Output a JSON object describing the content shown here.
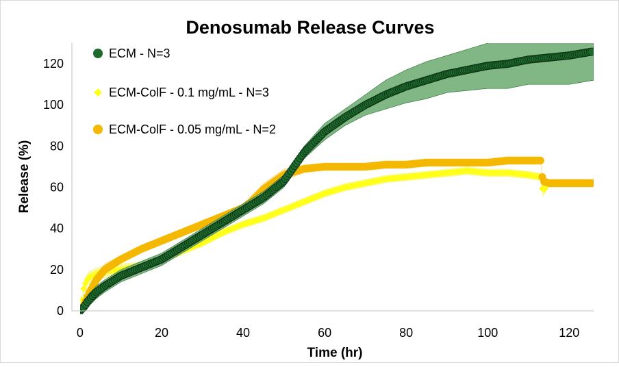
{
  "chart_data": {
    "type": "scatter",
    "title": "Denosumab Release Curves",
    "xlabel": "Time (hr)",
    "ylabel": "Release (%)",
    "xlim": [
      -2,
      126
    ],
    "ylim": [
      0,
      130
    ],
    "x_ticks": [
      0,
      20,
      40,
      60,
      80,
      100,
      120
    ],
    "y_ticks": [
      0,
      20,
      40,
      60,
      80,
      100,
      120
    ],
    "grid": false,
    "legend_position": "top-left",
    "series": [
      {
        "name": "ECM - N=3",
        "marker": "circle",
        "color": "#1e6b2e",
        "band_color": "#6aaa6f",
        "x": [
          0,
          1,
          2,
          4,
          6,
          10,
          15,
          20,
          25,
          30,
          35,
          40,
          45,
          50,
          55,
          60,
          65,
          70,
          75,
          80,
          85,
          90,
          95,
          100,
          105,
          110,
          115,
          120,
          126
        ],
        "y": [
          0,
          2,
          5,
          9,
          12,
          17,
          21,
          25,
          31,
          37,
          43,
          49,
          55,
          63,
          77,
          87,
          94,
          100,
          105,
          109,
          112,
          115,
          117,
          119,
          120,
          122,
          123,
          124,
          126
        ],
        "err": [
          0,
          2,
          3,
          3,
          3,
          3,
          3,
          3,
          3,
          3,
          3,
          3,
          3,
          3,
          3,
          4,
          4,
          5,
          7,
          8,
          9,
          9,
          10,
          11,
          12,
          12,
          13,
          14,
          14
        ]
      },
      {
        "name": "ECM-ColF - 0.1 mg/mL - N=3",
        "marker": "diamond",
        "color": "#ffff1a",
        "band_color": "#f5f58a",
        "x": [
          0,
          1,
          2,
          4,
          6,
          10,
          15,
          20,
          25,
          30,
          35,
          40,
          45,
          50,
          55,
          60,
          65,
          70,
          75,
          80,
          85,
          90,
          95,
          100,
          105,
          110,
          113,
          113.5,
          115,
          120,
          126
        ],
        "y": [
          0,
          12,
          16,
          18,
          19,
          20,
          22,
          25,
          29,
          33,
          38,
          42,
          45,
          49,
          53,
          57,
          60,
          62,
          64,
          65,
          66,
          67,
          68,
          67,
          67,
          66,
          65,
          58,
          62,
          62,
          62
        ],
        "err": [
          0,
          3,
          3,
          3,
          3,
          3,
          2,
          2,
          2,
          2,
          2,
          2,
          2,
          2,
          2,
          2,
          2,
          2,
          2,
          2,
          2,
          2,
          2,
          2,
          2,
          2,
          2,
          3,
          2,
          2,
          2
        ]
      },
      {
        "name": "ECM-ColF - 0.05 mg/mL - N=2",
        "marker": "circle",
        "color": "#f5b800",
        "band_color": "#f7d77a",
        "x": [
          0,
          1,
          2,
          4,
          6,
          10,
          15,
          20,
          25,
          30,
          35,
          40,
          42,
          45,
          50,
          55,
          60,
          65,
          70,
          75,
          80,
          85,
          90,
          95,
          100,
          105,
          110,
          113,
          113.5,
          115,
          120,
          126
        ],
        "y": [
          0,
          3,
          8,
          15,
          20,
          25,
          30,
          34,
          38,
          42,
          46,
          50,
          53,
          59,
          66,
          69,
          70,
          70,
          70,
          71,
          71,
          72,
          72,
          72,
          72,
          73,
          73,
          73,
          63,
          62,
          62,
          62
        ],
        "err": [
          0,
          2,
          3,
          3,
          3,
          2,
          2,
          2,
          2,
          2,
          2,
          2,
          3,
          3,
          3,
          2,
          2,
          2,
          2,
          2,
          2,
          2,
          2,
          2,
          2,
          2,
          2,
          2,
          2,
          2,
          2,
          2
        ]
      }
    ]
  }
}
